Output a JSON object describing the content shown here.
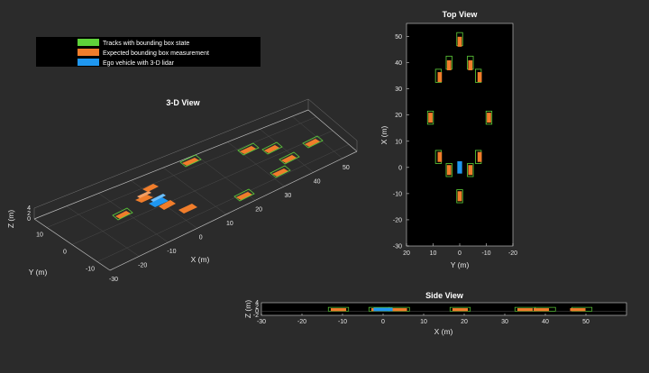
{
  "colors": {
    "track": "#5fd13a",
    "measurement": "#f07d2b",
    "ego": "#1f97f0",
    "axes_bg": "#000000",
    "figure_bg": "#2b2b2b",
    "grid": "#4a4a4a"
  },
  "legend": {
    "items": [
      {
        "label": "Tracks with bounding box state",
        "color": "#5fd13a"
      },
      {
        "label": "Expected bounding box measurement",
        "color": "#f07d2b"
      },
      {
        "label": "Ego vehicle with 3-D lidar",
        "color": "#1f97f0"
      }
    ]
  },
  "chart_data": [
    {
      "type": "scatter",
      "title": "3-D View",
      "xlabel": "X (m)",
      "ylabel": "Y (m)",
      "zlabel": "Z (m)",
      "xlim": [
        -30,
        55
      ],
      "ylim": [
        -15,
        15
      ],
      "zlim": [
        0,
        4
      ],
      "x_ticks": [
        "-30",
        "-20",
        "-10",
        "0",
        "10",
        "20",
        "30",
        "40",
        "50"
      ],
      "y_ticks": [
        "-10",
        "0",
        "10"
      ],
      "z_ticks": [
        "0",
        "2",
        "4"
      ],
      "grid": true
    },
    {
      "type": "scatter",
      "title": "Top View",
      "xlabel": "Y (m)",
      "ylabel": "X (m)",
      "xlim": [
        20,
        -20
      ],
      "ylim": [
        -30,
        55
      ],
      "x_ticks": [
        "20",
        "10",
        "0",
        "-10",
        "-20"
      ],
      "y_ticks": [
        "-30",
        "-20",
        "-10",
        "0",
        "10",
        "20",
        "30",
        "40",
        "50"
      ],
      "grid": false,
      "ego": {
        "x": 0,
        "y": 0,
        "length": 4.7,
        "width": 1.8
      },
      "measurements": [
        {
          "x": 48,
          "y": 0
        },
        {
          "x": 39,
          "y": 4
        },
        {
          "x": 39,
          "y": -4
        },
        {
          "x": 34.5,
          "y": 7.5
        },
        {
          "x": 34.5,
          "y": -7.5
        },
        {
          "x": 19,
          "y": 11
        },
        {
          "x": 19,
          "y": -11
        },
        {
          "x": 4,
          "y": 7.5
        },
        {
          "x": 4,
          "y": -7.5
        },
        {
          "x": -1,
          "y": 4
        },
        {
          "x": -1,
          "y": -4
        },
        {
          "x": -11,
          "y": 0
        }
      ],
      "tracks": [
        {
          "x": 49,
          "y": 0
        },
        {
          "x": 40,
          "y": 4
        },
        {
          "x": 40,
          "y": -4
        },
        {
          "x": 35,
          "y": 8
        },
        {
          "x": 35,
          "y": -7
        },
        {
          "x": 19,
          "y": 11
        },
        {
          "x": 19,
          "y": -11
        },
        {
          "x": 4,
          "y": 8
        },
        {
          "x": 4,
          "y": -7
        },
        {
          "x": -1,
          "y": 4
        },
        {
          "x": -1,
          "y": -4
        },
        {
          "x": -11,
          "y": 0
        }
      ]
    },
    {
      "type": "scatter",
      "title": "Side View",
      "xlabel": "X (m)",
      "ylabel": "Z (m)",
      "xlim": [
        -30,
        60
      ],
      "ylim": [
        -2,
        4
      ],
      "x_ticks": [
        "-30",
        "-20",
        "-10",
        "0",
        "10",
        "20",
        "30",
        "40",
        "50"
      ],
      "y_ticks": [
        "-2",
        "0",
        "2",
        "4"
      ],
      "grid": false,
      "ego": {
        "x": 0
      },
      "measurements": [
        {
          "x": -11
        },
        {
          "x": -1
        },
        {
          "x": 4
        },
        {
          "x": 19
        },
        {
          "x": 35
        },
        {
          "x": 39
        },
        {
          "x": 48
        }
      ],
      "tracks": [
        {
          "x": -11
        },
        {
          "x": -1
        },
        {
          "x": 4
        },
        {
          "x": 19
        },
        {
          "x": 35
        },
        {
          "x": 40
        },
        {
          "x": 49
        }
      ]
    }
  ]
}
